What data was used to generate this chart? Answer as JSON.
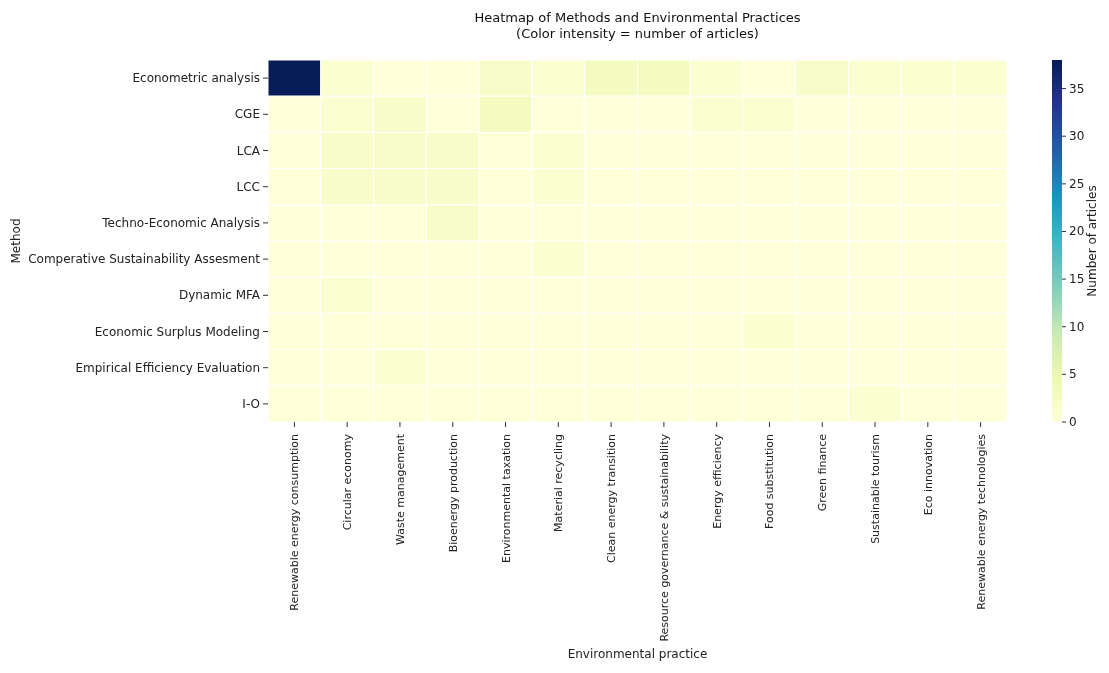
{
  "chart_data": {
    "type": "heatmap",
    "title": "Heatmap of Methods and Environmental Practices",
    "subtitle": "(Color intensity = number of articles)",
    "xlabel": "Environmental practice",
    "ylabel": "Method",
    "clabel": "Number of articles",
    "categories": [
      "Renewable energy consumption",
      "Circular economy",
      "Waste management",
      "Bioenergy production",
      "Environmental taxation",
      "Material recycling",
      "Clean energy transition",
      "Resource governance & sustainability",
      "Energy efficiency",
      "Food substitution",
      "Green finance",
      "Sustainable tourism",
      "Eco innovation",
      "Renewable energy technologies"
    ],
    "y_categories": [
      "Econometric analysis",
      "CGE",
      "LCA",
      "LCC",
      "Techno-Economic Analysis",
      "Comperative Sustainability Assesment",
      "Dynamic MFA",
      "Economic Surplus Modeling",
      "Empirical Efficiency Evaluation",
      "I-O"
    ],
    "cells": [
      [
        38,
        1,
        0,
        0,
        2,
        1,
        3,
        3,
        1,
        0,
        2,
        1,
        1,
        1
      ],
      [
        0,
        1,
        2,
        0,
        3,
        0,
        0,
        0,
        1,
        1,
        0,
        0,
        0,
        0
      ],
      [
        0,
        2,
        2,
        2,
        0,
        1,
        0,
        0,
        0,
        0,
        0,
        0,
        0,
        0
      ],
      [
        0,
        2,
        2,
        2,
        0,
        1,
        0,
        0,
        0,
        0,
        0,
        0,
        0,
        0
      ],
      [
        0,
        0,
        0,
        2,
        0,
        0,
        0,
        0,
        0,
        0,
        0,
        0,
        0,
        0
      ],
      [
        0,
        0,
        0,
        0,
        0,
        1,
        0,
        0,
        0,
        0,
        0,
        0,
        0,
        0
      ],
      [
        0,
        1,
        0,
        0,
        0,
        0,
        0,
        0,
        0,
        0,
        0,
        0,
        0,
        0
      ],
      [
        0,
        0,
        0,
        0,
        0,
        0,
        0,
        0,
        0,
        1,
        0,
        0,
        0,
        0
      ],
      [
        0,
        0,
        1,
        0,
        0,
        0,
        0,
        0,
        0,
        0,
        0,
        0,
        0,
        0
      ],
      [
        0,
        0,
        0,
        0,
        0,
        0,
        0,
        0,
        0,
        0,
        0,
        1,
        0,
        0
      ]
    ],
    "clim": [
      0,
      38
    ],
    "cticks": [
      0,
      5,
      10,
      15,
      20,
      25,
      30,
      35
    ]
  }
}
